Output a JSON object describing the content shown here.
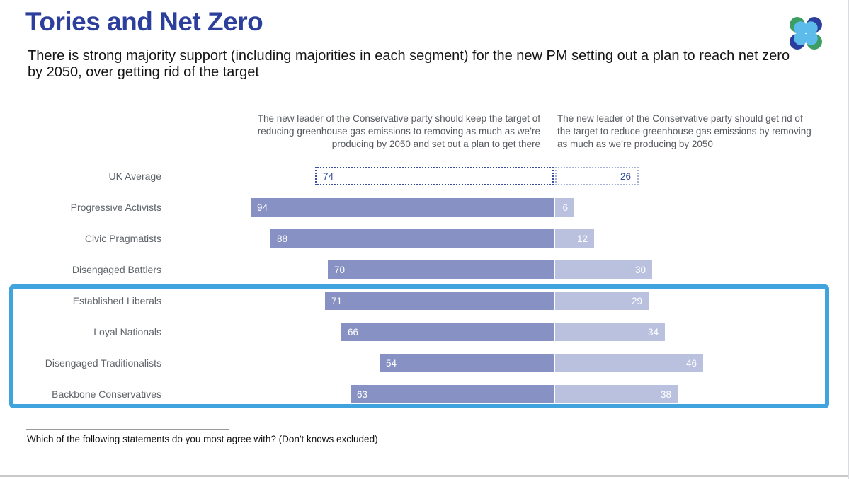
{
  "page": {
    "title": "Tories and Net Zero",
    "subtitle": "There is strong majority support (including majorities in each segment) for the new PM setting out a plan to reach net zero by 2050, over getting rid of the target",
    "footnote": "Which of the following statements do you most agree with? (Don't knows excluded)",
    "title_color": "#2c3f9c",
    "logo": {
      "name": "more-in-common-logo",
      "colors": {
        "green": "#3c9e63",
        "navy": "#2a3f9d",
        "light_blue": "#5cbbea"
      }
    }
  },
  "chart_data": {
    "type": "bar",
    "orientation": "horizontal-paired",
    "title": "Tories and Net Zero",
    "xlabel": "",
    "ylabel": "",
    "xlim": [
      0,
      100
    ],
    "grid": false,
    "categories": [
      "UK Average",
      "Progressive Activists",
      "Civic Pragmatists",
      "Disengaged Battlers",
      "Established Liberals",
      "Loyal Nationals",
      "Disengaged Traditionalists",
      "Backbone Conservatives"
    ],
    "series": [
      {
        "name": "The new leader of the Conservative party should keep the target of reducing greenhouse gas emissions to removing as much as we’re producing by 2050 and set out a plan to get there",
        "values": [
          74,
          94,
          88,
          70,
          71,
          66,
          54,
          63
        ],
        "color": "#8791c3"
      },
      {
        "name": "The new leader of the Conservative party should get rid of the target to reduce greenhouse gas emissions by removing as much as we’re producing by 2050",
        "values": [
          26,
          6,
          12,
          30,
          29,
          34,
          46,
          38
        ],
        "color": "#b9c1de"
      }
    ],
    "uk_average_style": "dotted-outline",
    "highlighted_categories": [
      "Established Liberals",
      "Loyal Nationals",
      "Disengaged Traditionalists",
      "Backbone Conservatives"
    ],
    "highlight_color": "#41a3dd"
  }
}
